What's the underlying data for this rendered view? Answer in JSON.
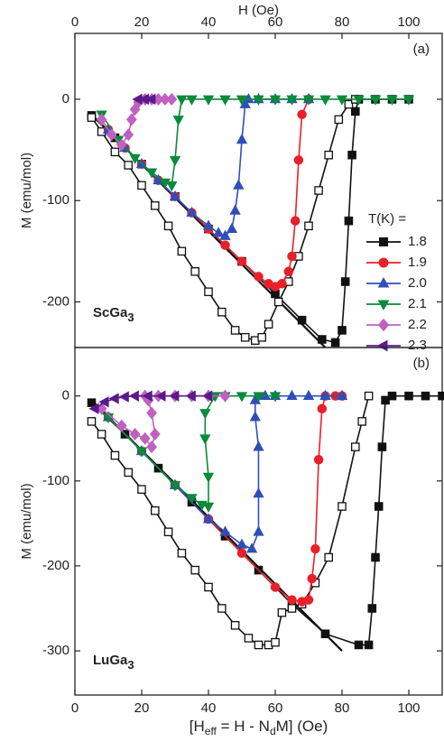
{
  "chart_data": [
    {
      "type": "line",
      "panel_label": "(a)",
      "sample_parts": [
        "ScGa",
        "3"
      ],
      "ylabel": "M (emu/mol)",
      "x2label": "H (Oe)",
      "x2ticks": [
        0,
        20,
        40,
        60,
        80,
        100
      ],
      "xlim": [
        0,
        110
      ],
      "ylim": [
        -245,
        65
      ],
      "yticks": [
        0,
        -100,
        -200
      ],
      "legend_title": "T(K) =",
      "line_x": [
        5,
        75
      ],
      "line_y": [
        -15,
        -245
      ],
      "line_color": "#111111",
      "series": [
        {
          "name": "1.8",
          "color": "#111111",
          "marker": "square",
          "marker_fill": "#111111",
          "x": [
            5,
            12,
            20,
            30,
            40,
            50,
            60,
            68,
            74,
            78,
            80,
            81,
            82,
            83,
            84,
            85,
            90,
            95,
            100
          ],
          "values": [
            -16,
            -38,
            -64,
            -96,
            -128,
            -160,
            -192,
            -218,
            -237,
            -240,
            -228,
            -180,
            -120,
            -55,
            -12,
            0,
            0,
            0,
            0
          ]
        },
        {
          "color": "#111111",
          "marker": "square",
          "marker_fill": "#ffffff",
          "x": [
            5,
            8,
            12,
            16,
            20,
            24,
            28,
            32,
            36,
            40,
            44,
            48,
            51,
            54,
            56,
            58,
            61,
            64,
            67,
            70,
            73,
            76,
            79,
            82,
            84
          ],
          "values": [
            -18,
            -32,
            -52,
            -65,
            -85,
            -105,
            -125,
            -150,
            -170,
            -190,
            -210,
            -228,
            -235,
            -238,
            -235,
            -222,
            -200,
            -180,
            -155,
            -125,
            -90,
            -55,
            -20,
            -5,
            0
          ]
        },
        {
          "name": "1.9",
          "color": "#e8202a",
          "marker": "circle",
          "marker_fill": "#e8202a",
          "x": [
            10,
            15,
            20,
            25,
            30,
            35,
            40,
            45,
            50,
            55,
            58,
            60,
            62,
            64,
            65,
            66,
            67,
            68,
            70
          ],
          "values": [
            -30,
            -48,
            -64,
            -80,
            -96,
            -112,
            -128,
            -144,
            -160,
            -175,
            -182,
            -185,
            -182,
            -170,
            -155,
            -120,
            -60,
            -15,
            0
          ]
        },
        {
          "name": "2.0",
          "color": "#2e4fb8",
          "marker": "triangle-up",
          "marker_fill": "#2e4fb8",
          "x": [
            10,
            15,
            20,
            25,
            30,
            35,
            40,
            43,
            45,
            47,
            48,
            49,
            50,
            51,
            52,
            55,
            60,
            65,
            70
          ],
          "values": [
            -30,
            -48,
            -64,
            -80,
            -96,
            -112,
            -125,
            -132,
            -135,
            -128,
            -110,
            -85,
            -40,
            -5,
            0,
            0,
            0,
            0,
            0
          ]
        },
        {
          "name": "2.1",
          "color": "#0a8a3a",
          "marker": "triangle-down",
          "marker_fill": "#0a8a3a",
          "x": [
            8,
            13,
            18,
            23,
            27,
            29,
            30,
            31,
            32,
            35,
            40,
            45,
            50,
            55,
            60,
            65,
            70,
            75,
            80,
            85,
            90,
            95,
            100
          ],
          "values": [
            -15,
            -40,
            -58,
            -72,
            -82,
            -85,
            -60,
            -20,
            0,
            0,
            0,
            0,
            0,
            0,
            0,
            0,
            0,
            0,
            0,
            0,
            0,
            0,
            0
          ]
        },
        {
          "name": "2.2",
          "color": "#c060c0",
          "marker": "diamond",
          "marker_fill": "#c060c0",
          "x": [
            8,
            11,
            14,
            16,
            17,
            18,
            19,
            21,
            23,
            25,
            27,
            29
          ],
          "values": [
            -20,
            -35,
            -45,
            -35,
            -20,
            -10,
            -3,
            0,
            0,
            0,
            0,
            0
          ]
        },
        {
          "name": "2.3",
          "color": "#5a1a8a",
          "marker": "triangle-left",
          "marker_fill": "#5a1a8a",
          "x": [
            19,
            21,
            23
          ],
          "values": [
            0,
            0,
            0
          ]
        }
      ]
    },
    {
      "type": "line",
      "panel_label": "(b)",
      "sample_parts": [
        "LuGa",
        "3"
      ],
      "ylabel": "M (emu/mol)",
      "xlabel_parts": [
        "[H",
        "eff",
        " = H - N",
        "d",
        "M] (Oe)"
      ],
      "xticks": [
        0,
        20,
        40,
        60,
        80,
        100
      ],
      "xlim": [
        0,
        110
      ],
      "ylim": [
        -352,
        57
      ],
      "yticks": [
        0,
        -100,
        -200,
        -300
      ],
      "line_x": [
        5,
        80
      ],
      "line_y": [
        -5,
        -300
      ],
      "line_color": "#111111",
      "series": [
        {
          "name": "1.8",
          "color": "#111111",
          "marker": "square",
          "marker_fill": "#111111",
          "x": [
            5,
            15,
            25,
            35,
            45,
            55,
            65,
            75,
            85,
            88,
            89,
            90,
            91,
            92,
            93,
            95,
            100,
            105,
            110
          ],
          "values": [
            -8,
            -45,
            -85,
            -125,
            -165,
            -205,
            -245,
            -280,
            -293,
            -293,
            -250,
            -190,
            -130,
            -60,
            -5,
            0,
            0,
            0,
            0
          ]
        },
        {
          "color": "#111111",
          "marker": "square",
          "marker_fill": "#ffffff",
          "x": [
            5,
            8,
            12,
            16,
            20,
            24,
            28,
            32,
            36,
            40,
            44,
            48,
            52,
            55,
            58,
            60,
            62,
            65,
            68,
            72,
            76,
            80,
            84,
            86,
            88
          ],
          "values": [
            -30,
            -45,
            -70,
            -90,
            -110,
            -135,
            -160,
            -185,
            -205,
            -225,
            -250,
            -270,
            -285,
            -293,
            -293,
            -290,
            -255,
            -250,
            -245,
            -220,
            -190,
            -130,
            -60,
            -30,
            0
          ]
        },
        {
          "name": "1.9",
          "color": "#e8202a",
          "marker": "circle",
          "marker_fill": "#e8202a",
          "x": [
            10,
            20,
            30,
            40,
            50,
            60,
            65,
            68,
            70,
            71,
            72,
            73,
            74,
            75,
            78,
            80
          ],
          "values": [
            -25,
            -65,
            -105,
            -145,
            -185,
            -225,
            -240,
            -242,
            -240,
            -215,
            -180,
            -75,
            -15,
            0,
            0,
            0
          ]
        },
        {
          "name": "2.0",
          "color": "#2e4fb8",
          "marker": "triangle-up",
          "marker_fill": "#2e4fb8",
          "x": [
            10,
            20,
            30,
            40,
            45,
            50,
            53,
            55,
            55,
            55,
            54,
            54,
            57,
            60,
            65,
            70,
            75,
            80
          ],
          "values": [
            -25,
            -65,
            -105,
            -145,
            -160,
            -175,
            -180,
            -160,
            -115,
            -60,
            -25,
            -5,
            0,
            0,
            0,
            0,
            0,
            0
          ]
        },
        {
          "name": "2.1",
          "color": "#0a8a3a",
          "marker": "triangle-down",
          "marker_fill": "#0a8a3a",
          "x": [
            10,
            20,
            30,
            35,
            38,
            40,
            40,
            39,
            39,
            42,
            45,
            50,
            55,
            60
          ],
          "values": [
            -25,
            -65,
            -105,
            -120,
            -128,
            -130,
            -95,
            -50,
            -20,
            0,
            0,
            0,
            0,
            0
          ]
        },
        {
          "name": "2.2",
          "color": "#c060c0",
          "marker": "diamond",
          "marker_fill": "#c060c0",
          "x": [
            8,
            14,
            18,
            21,
            23,
            24,
            23,
            22,
            21,
            25,
            30,
            35,
            40,
            45
          ],
          "values": [
            -15,
            -35,
            -45,
            -50,
            -60,
            -45,
            -20,
            -5,
            0,
            0,
            0,
            0,
            0,
            0
          ]
        },
        {
          "name": "2.3",
          "color": "#5a1a8a",
          "marker": "triangle-left",
          "marker_fill": "#5a1a8a",
          "x": [
            6,
            9,
            12,
            15,
            18,
            22,
            26,
            30,
            35,
            40
          ],
          "values": [
            -15,
            -7,
            -3,
            -1,
            0,
            0,
            0,
            0,
            0,
            0
          ]
        }
      ]
    }
  ]
}
